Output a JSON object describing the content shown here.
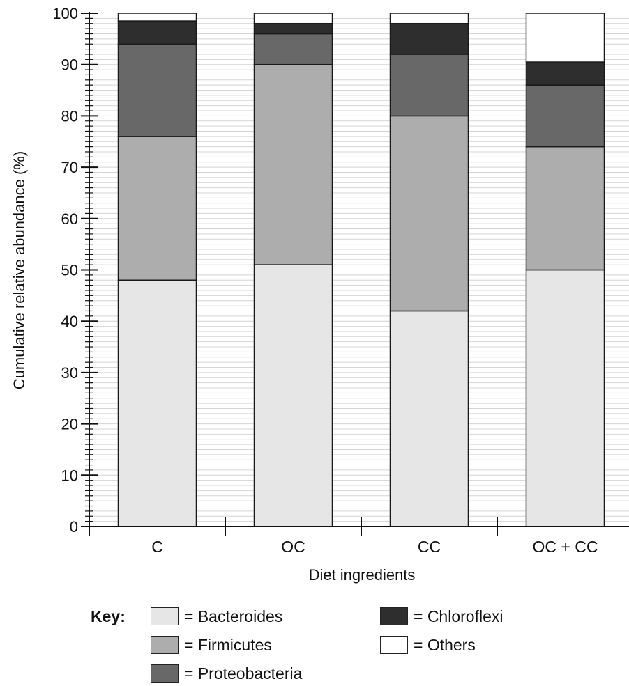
{
  "chart_data": {
    "type": "bar",
    "stacked": true,
    "categories": [
      "C",
      "OC",
      "CC",
      "OC + CC"
    ],
    "series": [
      {
        "name": "Bacteroides",
        "color": "#e6e6e6",
        "values": [
          48,
          51,
          42,
          50
        ]
      },
      {
        "name": "Firmicutes",
        "color": "#adadad",
        "values": [
          28,
          39,
          38,
          24
        ]
      },
      {
        "name": "Proteobacteria",
        "color": "#686868",
        "values": [
          18,
          6,
          12,
          12
        ]
      },
      {
        "name": "Chloroflexi",
        "color": "#2e2e2e",
        "values": [
          4.5,
          2,
          6,
          4.5
        ]
      },
      {
        "name": "Others",
        "color": "#ffffff",
        "values": [
          1.5,
          2,
          2,
          9.5
        ]
      }
    ],
    "xlabel": "Diet ingredients",
    "ylabel": "Cumulative relative abundance (%)",
    "ylim": [
      0,
      100
    ],
    "yticks": [
      "0",
      "10",
      "20",
      "30",
      "40",
      "50",
      "60",
      "70",
      "80",
      "90",
      "100"
    ],
    "grid": true
  },
  "legend": {
    "title": "Key:",
    "items": [
      {
        "label": "= Bacteroides",
        "icon": "bacteroides-swatch"
      },
      {
        "label": "= Firmicutes",
        "icon": "firmicutes-swatch"
      },
      {
        "label": "= Proteobacteria",
        "icon": "proteobacteria-swatch"
      },
      {
        "label": "= Chloroflexi",
        "icon": "chloroflexi-swatch"
      },
      {
        "label": "= Others",
        "icon": "others-swatch"
      }
    ]
  }
}
